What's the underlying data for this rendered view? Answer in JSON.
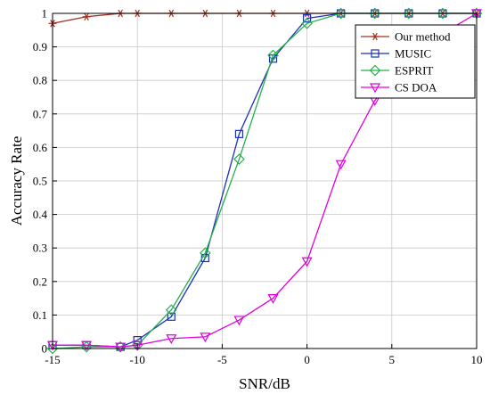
{
  "chart_data": {
    "type": "line",
    "title": "",
    "xlabel": "SNR/dB",
    "ylabel": "Accuracy Rate",
    "xlim": [
      -15,
      10
    ],
    "ylim": [
      0,
      1
    ],
    "x_ticks": [
      -15,
      -10,
      -5,
      0,
      5,
      10
    ],
    "y_ticks": [
      0,
      0.1,
      0.2,
      0.3,
      0.4,
      0.5,
      0.6,
      0.7,
      0.8,
      0.9,
      1
    ],
    "x_tick_labels": [
      "-15",
      "-10",
      "-5",
      "0",
      "5",
      "10"
    ],
    "y_tick_labels": [
      "0",
      "0.1",
      "0.2",
      "0.3",
      "0.4",
      "0.5",
      "0.6",
      "0.7",
      "0.8",
      "0.9",
      "1"
    ],
    "grid": true,
    "legend_position": "top-right",
    "series": [
      {
        "name": "Our method",
        "color": "#a0301f",
        "marker": "asterisk",
        "x": [
          -15,
          -13,
          -11,
          -10,
          -8,
          -6,
          -4,
          -2,
          0,
          2,
          4,
          6,
          8,
          10
        ],
        "y": [
          0.97,
          0.99,
          1,
          1,
          1,
          1,
          1,
          1,
          1,
          1,
          1,
          1,
          1,
          1
        ]
      },
      {
        "name": "MUSIC",
        "color": "#1f2fb4",
        "marker": "square",
        "x": [
          -15,
          -13,
          -11,
          -10,
          -8,
          -6,
          -4,
          -2,
          0,
          2,
          4,
          6,
          8,
          10
        ],
        "y": [
          0.01,
          0.01,
          0.005,
          0.025,
          0.095,
          0.27,
          0.64,
          0.865,
          0.985,
          1,
          1,
          1,
          1,
          1
        ]
      },
      {
        "name": "ESPRIT",
        "color": "#22b14c",
        "marker": "diamond",
        "x": [
          -15,
          -13,
          -11,
          -10,
          -8,
          -6,
          -4,
          -2,
          0,
          2,
          4,
          6,
          8,
          10
        ],
        "y": [
          0.0,
          0.005,
          0.005,
          0.01,
          0.115,
          0.285,
          0.565,
          0.875,
          0.97,
          1,
          1,
          1,
          1,
          1
        ]
      },
      {
        "name": "CS DOA",
        "color": "#e000e0",
        "marker": "triangle-down",
        "x": [
          -15,
          -13,
          -11,
          -10,
          -8,
          -6,
          -4,
          -2,
          0,
          2,
          4,
          6,
          8,
          10
        ],
        "y": [
          0.01,
          0.01,
          0.005,
          0.01,
          0.03,
          0.035,
          0.085,
          0.15,
          0.26,
          0.55,
          0.74,
          0.86,
          0.94,
          1
        ]
      }
    ]
  }
}
